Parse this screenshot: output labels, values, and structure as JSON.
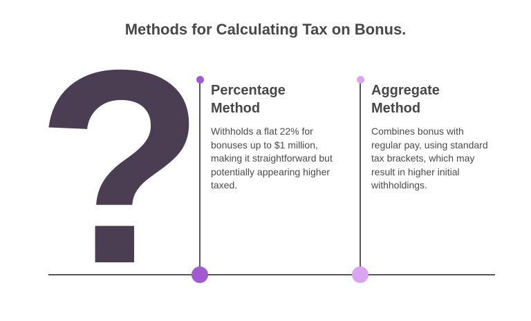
{
  "title": "Methods for Calculating Tax on Bonus.",
  "icon": {
    "name": "question-mark-icon",
    "glyph": "?",
    "color": "#4b3d52"
  },
  "methods": [
    {
      "heading": "Percentage Method",
      "text": "Withholds a flat 22% for bonuses up to $1 million, making it straightforward but potentially appearing higher taxed.",
      "color": "#a15bd0"
    },
    {
      "heading": "Aggregate Method",
      "text": "Combines bonus with regular pay, using standard tax brackets, which may result in higher initial withholdings.",
      "color": "#d9a4f2"
    }
  ]
}
